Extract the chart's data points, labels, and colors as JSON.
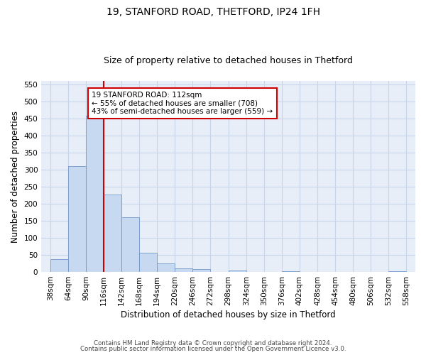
{
  "title": "19, STANFORD ROAD, THETFORD, IP24 1FH",
  "subtitle": "Size of property relative to detached houses in Thetford",
  "xlabel": "Distribution of detached houses by size in Thetford",
  "ylabel": "Number of detached properties",
  "footnote1": "Contains HM Land Registry data © Crown copyright and database right 2024.",
  "footnote2": "Contains public sector information licensed under the Open Government Licence v3.0.",
  "annotation_line1": "19 STANFORD ROAD: 112sqm",
  "annotation_line2": "← 55% of detached houses are smaller (708)",
  "annotation_line3": "43% of semi-detached houses are larger (559) →",
  "bar_edges": [
    38,
    64,
    90,
    116,
    142,
    168,
    194,
    220,
    246,
    272,
    298,
    324,
    350,
    376,
    402,
    428,
    454,
    480,
    506,
    532,
    558
  ],
  "bar_heights": [
    38,
    310,
    457,
    228,
    160,
    57,
    25,
    10,
    8,
    0,
    5,
    0,
    0,
    3,
    0,
    0,
    0,
    0,
    0,
    3
  ],
  "bar_color": "#c6d9f1",
  "bar_edge_color": "#7097c8",
  "red_line_x": 116,
  "red_line_color": "#cc0000",
  "annotation_box_color": "#cc0000",
  "ylim": [
    0,
    560
  ],
  "yticks": [
    0,
    50,
    100,
    150,
    200,
    250,
    300,
    350,
    400,
    450,
    500,
    550
  ],
  "grid_color": "#c8d4e8",
  "bg_color": "#e8eef8",
  "title_fontsize": 10,
  "subtitle_fontsize": 9,
  "axis_fontsize": 8.5,
  "tick_fontsize": 7.5,
  "annot_fontsize": 7.5
}
